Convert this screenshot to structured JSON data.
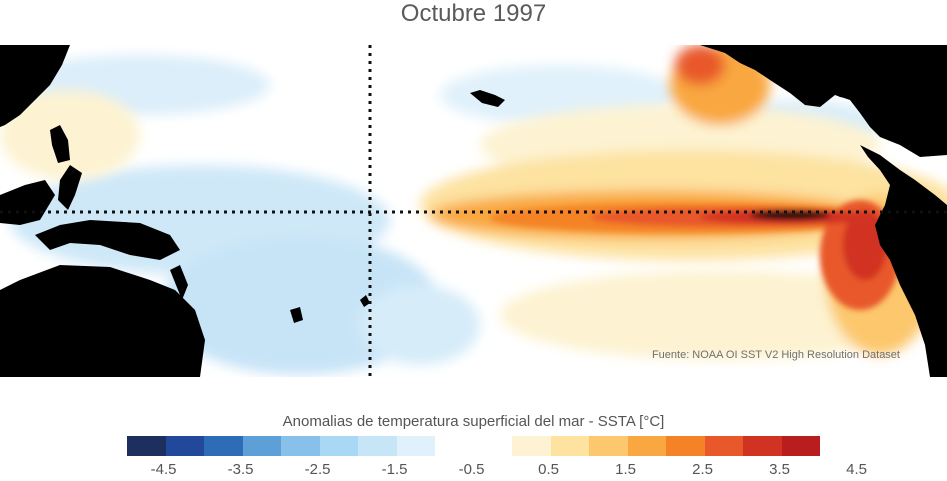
{
  "title": "Octubre 1997",
  "source": "Fuente: NOAA OI SST V2 High Resolution Dataset",
  "colorbar": {
    "label": "Anomalias de temperatura superficial del mar - SSTA  [°C]",
    "tick_labels": [
      "-4.5",
      "-3.5",
      "-2.5",
      "-1.5",
      "-0.5",
      "0.5",
      "1.5",
      "2.5",
      "3.5",
      "4.5"
    ],
    "colors": [
      "#1c2f5e",
      "#21489b",
      "#2f6cb8",
      "#5d9fd7",
      "#87c0e8",
      "#a8d8f4",
      "#c6e6f8",
      "#e0f1fb",
      "#ffffff",
      "#ffffff",
      "#fdf3d2",
      "#fde2a0",
      "#fcc76d",
      "#f9a740",
      "#f48328",
      "#e8582a",
      "#d13322",
      "#b81e1e"
    ]
  },
  "chart_data": {
    "type": "heatmap",
    "title": "Octubre 1997",
    "variable": "Anomalias de temperatura superficial del mar - SSTA",
    "units": "°C",
    "color_range": [
      -4.5,
      4.5
    ],
    "source": "Fuente: NOAA OI SST V2 High Resolution Dataset"
  }
}
